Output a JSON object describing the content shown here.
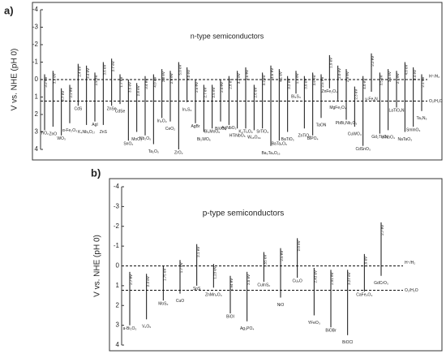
{
  "chart_data": [
    {
      "type": "band-edge",
      "panel_label": "a)",
      "title": "n-type semiconductors",
      "ylabel": "V vs. NHE (pH 0)",
      "ylim": [
        -4,
        4
      ],
      "inverted": true,
      "yticks": [
        -4,
        -3,
        -2,
        -1,
        0,
        1,
        2,
        3,
        4
      ],
      "reference_lines": [
        {
          "value": 0,
          "label": "H⁺/H₂"
        },
        {
          "value": 1.23,
          "label": "O₂/H₂O"
        }
      ],
      "categories": [
        "TiO₂",
        "ZnO",
        "WO₃",
        "α-Fe₂O₃",
        "CdS",
        "K₄Nb₆O₁₇",
        "AgI",
        "ZnS",
        "ZnSe",
        "CdSe",
        "SnO₂",
        "MoO₃",
        "Nb₂O₅",
        "Ta₂O₅",
        "In₂O₃",
        "CeO₂",
        "ZrO₂",
        "In₂S₃",
        "AgBr",
        "Bi₂WO₆",
        "Bi₂MoO₆",
        "BiVO₄",
        "AgNbO₃",
        "HTiNbO₅",
        "K₂Ti₄O₉",
        "W₁₈O₄₉",
        "SrTiO₃",
        "Ba₅Ta₄O₁₅",
        "BaTa₂O₆",
        "BaTiO₃",
        "Bi₂S₃",
        "ZnTiO₃",
        "BiPO₄",
        "TaON",
        "ZnFe₂O₄",
        "MgFe₂O₄",
        "PbBi₂Nb₂O₉",
        "CuWO₄",
        "CdSnO₃",
        "γ-Fe₂N",
        "Gd₂Ti₂O₇",
        "InNbO₄",
        "LaTiO₂N",
        "NaTaO₃",
        "SmInO₃",
        "Ta₃N₅"
      ],
      "cb": [
        -0.3,
        -0.5,
        0.5,
        0.3,
        -0.9,
        -0.8,
        -0.4,
        -1.0,
        -1.2,
        -0.3,
        0,
        0.2,
        -0.2,
        -0.3,
        -0.6,
        -0.5,
        -1.0,
        -0.7,
        0,
        0.3,
        0.3,
        0,
        -0.2,
        -0.5,
        -0.7,
        0.3,
        -0.4,
        -0.8,
        -0.6,
        -0.2,
        -0.5,
        -0.2,
        -0.4,
        -0.3,
        -1.4,
        -0.8,
        -0.6,
        0.4,
        -0.2,
        -1.5,
        -0.4,
        -0.6,
        -0.5,
        -1.0,
        -0.7,
        -0.3
      ],
      "vb": [
        2.9,
        2.7,
        3.2,
        2.5,
        1.5,
        2.6,
        2.4,
        2.6,
        1.5,
        1.4,
        3.5,
        3.0,
        3.2,
        3.7,
        2.2,
        2.4,
        4.0,
        1.3,
        2.5,
        3.0,
        2.8,
        2.4,
        2.6,
        2.8,
        2.8,
        2.9,
        2.8,
        3.8,
        3.5,
        3.0,
        0.8,
        2.8,
        3.2,
        2.2,
        0.5,
        1.2,
        2.3,
        2.7,
        3.8,
        0.7,
        3.1,
        2.9,
        1.6,
        3.0,
        2.7,
        1.8
      ],
      "gap_labels": [
        "3.2 eV",
        "3.2 eV",
        "2.7 eV",
        "2.2 eV",
        "2.4 eV",
        "3.4 eV",
        "2.8 eV",
        "3.6 eV",
        "2.7 eV",
        "1.7 eV",
        "3.5 eV",
        "2.8 eV",
        "3.4 eV",
        "4.0 eV",
        "2.8 eV",
        "2.9 eV",
        "5.0 eV",
        "2.0 eV",
        "2.5 eV",
        "2.7 eV",
        "2.5 eV",
        "2.4 eV",
        "2.8 eV",
        "3.3 eV",
        "3.5 eV",
        "2.6 eV",
        "3.2 eV",
        "4.6 eV",
        "4.1 eV",
        "3.2 eV",
        "1.3 eV",
        "3.0 eV",
        "3.6 eV",
        "2.5 eV",
        "1.9 eV",
        "2.0 eV",
        "2.9 eV",
        "2.3 eV",
        "4.0 eV",
        "2.2 eV",
        "3.5 eV",
        "3.5 eV",
        "2.1 eV",
        "4.0 eV",
        "3.4 eV",
        "2.1 eV"
      ]
    },
    {
      "type": "band-edge",
      "panel_label": "b)",
      "title": "p-type semiconductors",
      "ylabel": "V vs. NHE (pH 0)",
      "ylim": [
        -4,
        4
      ],
      "inverted": true,
      "yticks": [
        -4,
        -3,
        -2,
        -1,
        0,
        1,
        2,
        3,
        4
      ],
      "reference_lines": [
        {
          "value": 0,
          "label": "H⁺/H₂"
        },
        {
          "value": 1.23,
          "label": "O₂/H₂O"
        }
      ],
      "categories": [
        "a-Bi₂O₃",
        "V₂O₅",
        "MoS₂",
        "CuO",
        "SnS",
        "ZnMn₂O₄",
        "BiOI",
        "Ag₃PO₄",
        "CuInS₂",
        "NiO",
        "Cu₂O",
        "YFeO₃",
        "BiOBr",
        "BiOCl",
        "CaFe₂O₄",
        "GdCrO₃"
      ],
      "cb": [
        0.3,
        0.4,
        0,
        -0.3,
        -1.1,
        -0.1,
        0.5,
        0.3,
        -0.7,
        -0.9,
        -1.4,
        0.1,
        0.2,
        0.2,
        -0.6,
        -2.2
      ],
      "vb": [
        3.0,
        2.7,
        1.75,
        1.4,
        1.0,
        1.1,
        2.4,
        2.8,
        0.8,
        1.6,
        0.6,
        2.5,
        3.1,
        3.5,
        1.3,
        0.5
      ],
      "gap_labels": [
        "2.7 eV",
        "2.3 eV",
        "1.75 eV",
        "1.7 eV",
        "2.1 eV",
        "1.23 eV",
        "1.94 eV",
        "2.5 eV",
        "1.55 eV",
        "2.5 eV",
        "2.0 eV",
        "2.43 eV",
        "2.91 eV",
        "3.27 eV",
        "1.9 eV",
        "2.7 eV"
      ]
    }
  ]
}
